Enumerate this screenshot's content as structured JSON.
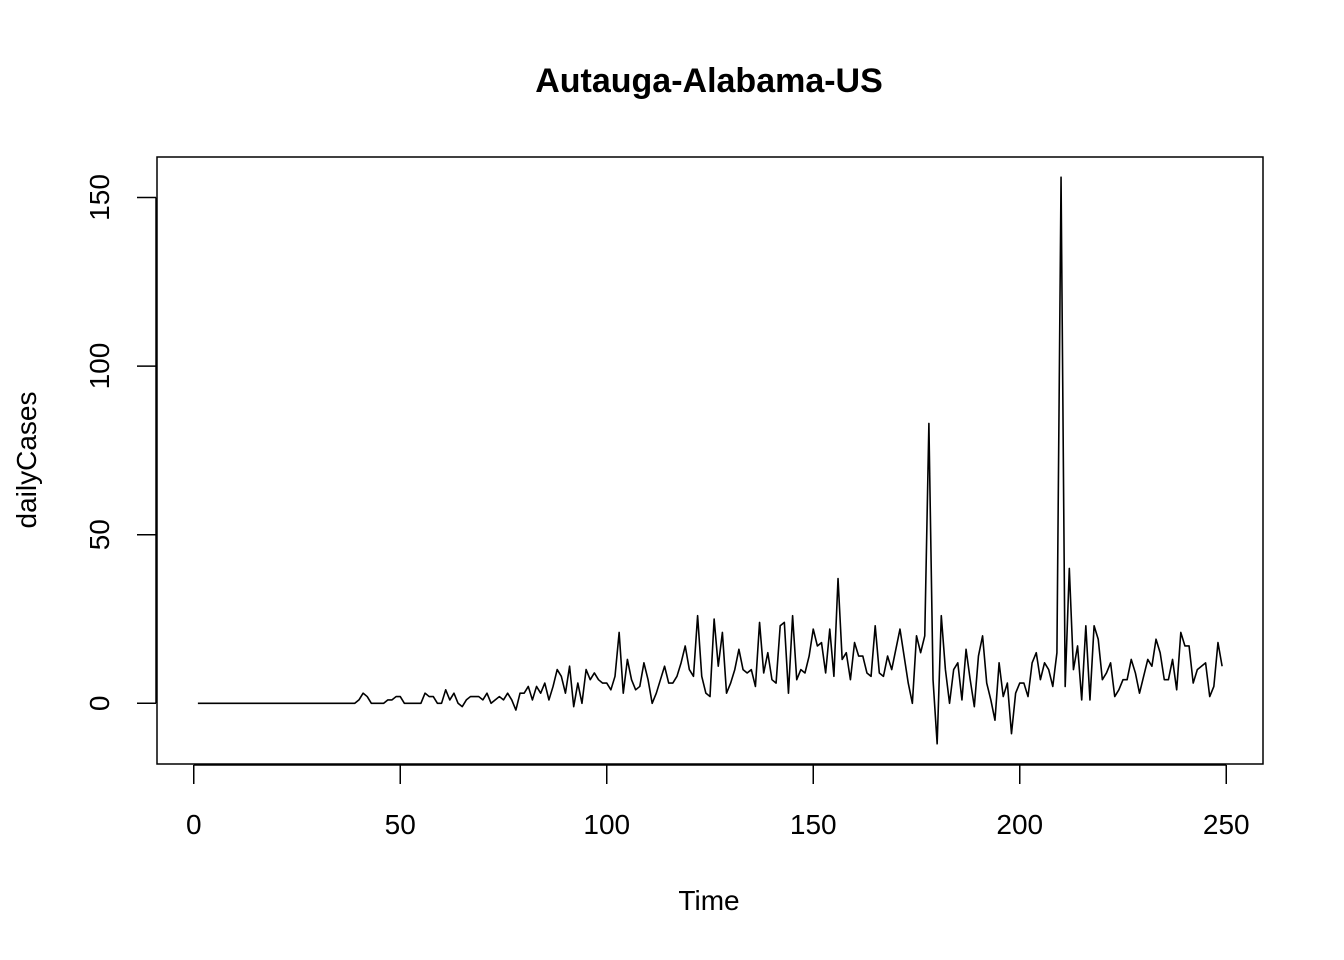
{
  "chart_data": {
    "type": "line",
    "title": "Autauga-Alabama-US",
    "xlabel": "Time",
    "ylabel": "dailyCases",
    "xlim": [
      -8.9,
      258.9
    ],
    "ylim": [
      -18.0,
      162.0
    ],
    "x_ticks": [
      0,
      50,
      100,
      150,
      200,
      250
    ],
    "y_ticks": [
      0,
      50,
      100,
      150
    ],
    "grid": false,
    "legend": "none",
    "line_color": "#000000",
    "series": [
      {
        "x_start": 1,
        "values": [
          0,
          0,
          0,
          0,
          0,
          0,
          0,
          0,
          0,
          0,
          0,
          0,
          0,
          0,
          0,
          0,
          0,
          0,
          0,
          0,
          0,
          0,
          0,
          0,
          0,
          0,
          0,
          0,
          0,
          0,
          0,
          0,
          0,
          0,
          0,
          0,
          0,
          0,
          0,
          1,
          3,
          2,
          0,
          0,
          0,
          0,
          1,
          1,
          2,
          2,
          0,
          0,
          0,
          0,
          0,
          3,
          2,
          2,
          0,
          0,
          4,
          1,
          3,
          0,
          -1,
          1,
          2,
          2,
          2,
          1,
          3,
          0,
          1,
          2,
          1,
          3,
          1,
          -2,
          3,
          3,
          5,
          1,
          5,
          3,
          6,
          1,
          5,
          10,
          8,
          3,
          11,
          -1,
          6,
          0,
          10,
          7,
          9,
          7,
          6,
          6,
          4,
          8,
          21,
          3,
          13,
          7,
          4,
          5,
          12,
          7,
          0,
          3,
          7,
          11,
          6,
          6,
          8,
          12,
          17,
          10,
          8,
          26,
          8,
          3,
          2,
          25,
          11,
          21,
          3,
          6,
          10,
          16,
          10,
          9,
          10,
          5,
          24,
          9,
          15,
          7,
          6,
          23,
          24,
          3,
          26,
          7,
          10,
          9,
          14,
          22,
          17,
          18,
          9,
          22,
          8,
          37,
          13,
          15,
          7,
          18,
          14,
          14,
          9,
          8,
          23,
          9,
          8,
          14,
          10,
          16,
          22,
          14,
          6,
          0,
          20,
          15,
          20,
          83,
          7,
          -12,
          26,
          10,
          0,
          10,
          12,
          1,
          16,
          7,
          -1,
          14,
          20,
          6,
          1,
          -5,
          12,
          2,
          6,
          -9,
          3,
          6,
          6,
          2,
          12,
          15,
          7,
          12,
          10,
          5,
          15,
          156,
          5,
          40,
          10,
          17,
          1,
          23,
          1,
          23,
          19,
          7,
          9,
          12,
          2,
          4,
          7,
          7,
          13,
          9,
          3,
          8,
          13,
          11,
          19,
          15,
          7,
          7,
          13,
          4,
          21,
          17,
          17,
          6,
          10,
          11,
          12,
          2,
          5,
          18,
          11
        ]
      }
    ]
  }
}
